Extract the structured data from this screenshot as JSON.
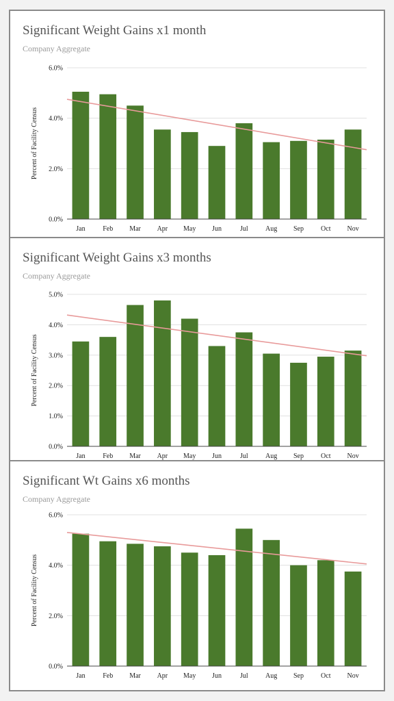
{
  "colors": {
    "bar": "#4a7a2c",
    "trend": "#e89a9a",
    "grid": "#e0e0e0",
    "axis": "#444444"
  },
  "chart_data": [
    {
      "type": "bar",
      "title": "Significant Weight Gains x1 month",
      "subtitle": "Company Aggregate",
      "ylabel": "Percent of Facility Census",
      "xlabel": "",
      "categories": [
        "Jan",
        "Feb",
        "Mar",
        "Apr",
        "May",
        "Jun",
        "Jul",
        "Aug",
        "Sep",
        "Oct",
        "Nov"
      ],
      "values": [
        5.05,
        4.95,
        4.5,
        3.55,
        3.45,
        2.9,
        3.8,
        3.05,
        3.1,
        3.15,
        3.55
      ],
      "trendline": [
        4.75,
        2.75
      ],
      "ylim": [
        0,
        6
      ],
      "yticks": [
        "0.0%",
        "2.0%",
        "4.0%",
        "6.0%"
      ],
      "grid": true
    },
    {
      "type": "bar",
      "title": "Significant Weight Gains x3 months",
      "subtitle": "Company Aggregate",
      "ylabel": "Percent of Facility Census",
      "xlabel": "",
      "categories": [
        "Jan",
        "Feb",
        "Mar",
        "Apr",
        "May",
        "Jun",
        "Jul",
        "Aug",
        "Sep",
        "Oct",
        "Nov"
      ],
      "values": [
        3.45,
        3.6,
        4.65,
        4.8,
        4.2,
        3.3,
        3.75,
        3.05,
        2.75,
        2.95,
        3.15
      ],
      "trendline": [
        4.32,
        2.98
      ],
      "ylim": [
        0,
        5
      ],
      "yticks": [
        "0.0%",
        "1.0%",
        "2.0%",
        "3.0%",
        "4.0%",
        "5.0%"
      ],
      "grid": true
    },
    {
      "type": "bar",
      "title": "Significant Wt Gains x6 months",
      "subtitle": "Company Aggregate",
      "ylabel": "Percent of Facility Census",
      "xlabel": "",
      "categories": [
        "Jan",
        "Feb",
        "Mar",
        "Apr",
        "May",
        "Jun",
        "Jul",
        "Aug",
        "Sep",
        "Oct",
        "Nov"
      ],
      "values": [
        5.25,
        4.95,
        4.85,
        4.75,
        4.5,
        4.4,
        5.45,
        5.0,
        4.0,
        4.2,
        3.75
      ],
      "trendline": [
        5.3,
        4.05
      ],
      "ylim": [
        0,
        6
      ],
      "yticks": [
        "0.0%",
        "2.0%",
        "4.0%",
        "6.0%"
      ],
      "grid": true
    }
  ]
}
